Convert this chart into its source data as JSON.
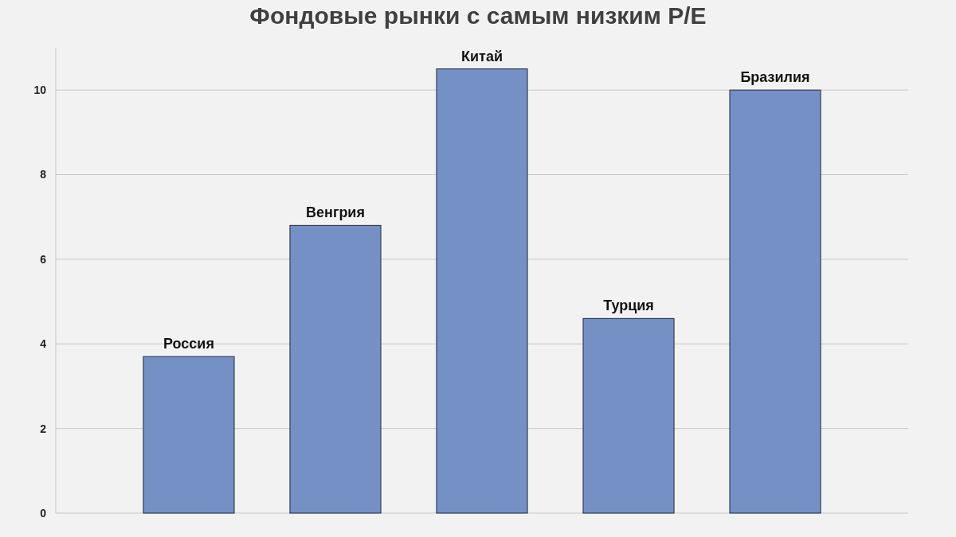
{
  "chart_data": {
    "type": "bar",
    "title": "Фондовые рынки с самым низким P/E",
    "categories": [
      "Россия",
      "Венгрия",
      "Китай",
      "Турция",
      "Бразилия"
    ],
    "values": [
      3.7,
      6.8,
      10.5,
      4.6,
      10.0
    ],
    "color": "#7590c4",
    "ylim": [
      0,
      11
    ],
    "yticks": [
      0,
      2,
      4,
      6,
      8,
      10
    ],
    "grid": "y"
  }
}
